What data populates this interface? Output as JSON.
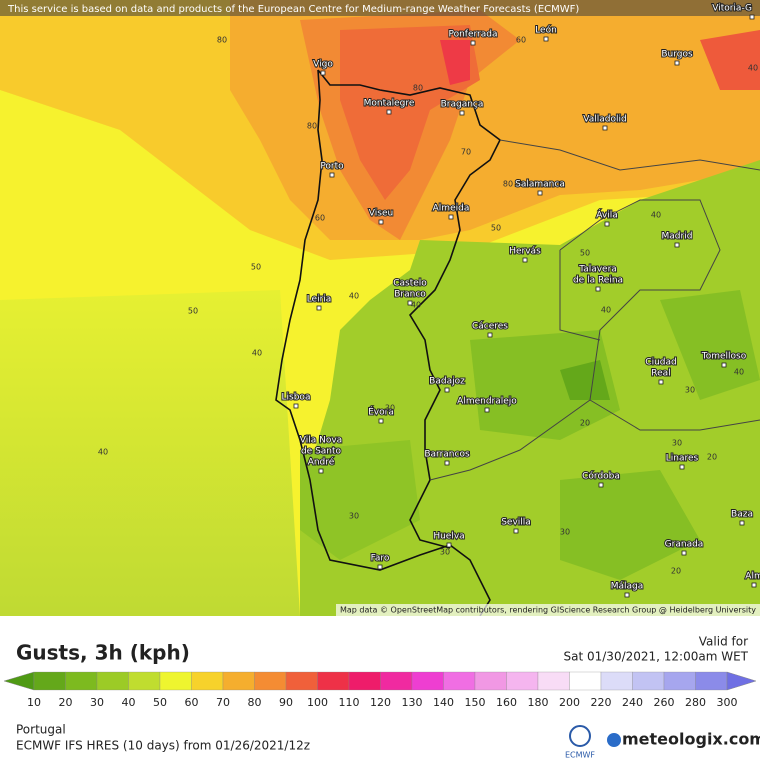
{
  "header": {
    "notice": "This service is based on data and products of the European Centre for Medium-range Weather Forecasts (ECMWF)"
  },
  "map": {
    "attribution": "Map data © OpenStreetMap contributors, rendering GIScience Research Group @ Heidelberg University",
    "cities": [
      "Vitoria-G",
      "Ponferrada",
      "León",
      "Burgos",
      "Vigo",
      "Montalegre",
      "Bragança",
      "Valladolid",
      "Porto",
      "Salamanca",
      "Viseu",
      "Almeida",
      "Ávila",
      "Madrid",
      "Hervás",
      [
        "Talavera",
        "de la Reina"
      ],
      [
        "Castelo",
        "Branco"
      ],
      "Leiria",
      "Cáceres",
      [
        "Ciudad",
        "Real"
      ],
      "Tomelloso",
      "Badajoz",
      "Lisboa",
      "Almendralejo",
      "Évora",
      [
        "Vila Nova",
        "de Santo",
        "André"
      ],
      "Barrancos",
      "Linares",
      "Córdoba",
      "Sevilla",
      "Baza",
      "Huelva",
      "Granada",
      "Faro",
      "Málaga",
      "Alm"
    ],
    "contour_labels": [
      80,
      60,
      80,
      80,
      70,
      80,
      60,
      50,
      50,
      50,
      40,
      40,
      50,
      40,
      40,
      40,
      40,
      30,
      30,
      40,
      20,
      30,
      20,
      30,
      30,
      30,
      20,
      40
    ]
  },
  "legend": {
    "title": "Gusts, 3h (kph)",
    "ticks": [
      10,
      20,
      30,
      40,
      50,
      60,
      70,
      80,
      90,
      100,
      110,
      120,
      130,
      140,
      150,
      160,
      180,
      200,
      220,
      240,
      260,
      280,
      300
    ],
    "colors": [
      "#4f9a14",
      "#64a81a",
      "#7dba1f",
      "#9ccb26",
      "#c0dd2f",
      "#eef52f",
      "#f7d22b",
      "#f5ae2e",
      "#f48c33",
      "#f0603a",
      "#ee3147",
      "#ee1c6a",
      "#f02aa0",
      "#ee3ed1",
      "#f06ee3",
      "#f198e4",
      "#f5b5ef",
      "#f8dcf6",
      "#ffffff",
      "#dcdcf8",
      "#c2c3f3",
      "#a6a6ee",
      "#8b8be9",
      "#6f6fe3"
    ]
  },
  "valid": {
    "label": "Valid for",
    "time": "Sat 01/30/2021, 12:00am WET"
  },
  "footer": {
    "region": "Portugal",
    "model": "ECMWF IFS HRES (10 days) from 01/26/2021/12z",
    "ecmwf": "ECMWF",
    "brand": "meteologix.com"
  }
}
